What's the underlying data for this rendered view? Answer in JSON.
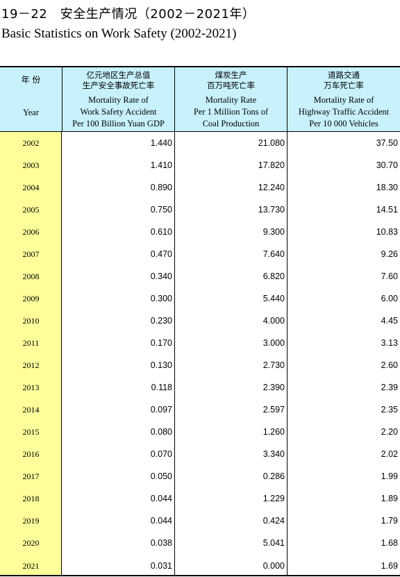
{
  "title_cn": "19－22　安全生产情况（2002－2021年）",
  "title_en": "Basic Statistics on Work Safety (2002-2021)",
  "header": {
    "year_cn": "年 份",
    "year_en": "Year",
    "col1_cn1": "亿元地区生产总值",
    "col1_cn2": "生产安全事故死亡率",
    "col1_en1": "Mortality Rate of",
    "col1_en2": "Work Safety Accident",
    "col1_en3": "Per 100 Billion Yuan GDP",
    "col2_cn1": "煤炭生产",
    "col2_cn2": "百万吨死亡率",
    "col2_en1": "Mortality Rate",
    "col2_en2": "Per 1 Million Tons of",
    "col2_en3": "Coal Production",
    "col3_cn1": "道路交通",
    "col3_cn2": "万车死亡率",
    "col3_en1": "Mortality Rate of",
    "col3_en2": "Highway Traffic Accident",
    "col3_en3": "Per 10 000 Vehicles"
  },
  "rows": [
    {
      "year": "2002",
      "gdp": "1.440",
      "coal": "21.080",
      "road": "37.50"
    },
    {
      "year": "2003",
      "gdp": "1.410",
      "coal": "17.820",
      "road": "30.70"
    },
    {
      "year": "2004",
      "gdp": "0.890",
      "coal": "12.240",
      "road": "18.30"
    },
    {
      "year": "2005",
      "gdp": "0.750",
      "coal": "13.730",
      "road": "14.51"
    },
    {
      "year": "2006",
      "gdp": "0.610",
      "coal": "9.300",
      "road": "10.83"
    },
    {
      "year": "2007",
      "gdp": "0.470",
      "coal": "7.640",
      "road": "9.26"
    },
    {
      "year": "2008",
      "gdp": "0.340",
      "coal": "6.820",
      "road": "7.60"
    },
    {
      "year": "2009",
      "gdp": "0.300",
      "coal": "5.440",
      "road": "6.00"
    },
    {
      "year": "2010",
      "gdp": "0.230",
      "coal": "4.000",
      "road": "4.45"
    },
    {
      "year": "2011",
      "gdp": "0.170",
      "coal": "3.000",
      "road": "3.13"
    },
    {
      "year": "2012",
      "gdp": "0.130",
      "coal": "2.730",
      "road": "2.60"
    },
    {
      "year": "2013",
      "gdp": "0.118",
      "coal": "2.390",
      "road": "2.39"
    },
    {
      "year": "2014",
      "gdp": "0.097",
      "coal": "2.597",
      "road": "2.35"
    },
    {
      "year": "2015",
      "gdp": "0.080",
      "coal": "1.260",
      "road": "2.20"
    },
    {
      "year": "2016",
      "gdp": "0.070",
      "coal": "3.340",
      "road": "2.02"
    },
    {
      "year": "2017",
      "gdp": "0.050",
      "coal": "0.286",
      "road": "1.99"
    },
    {
      "year": "2018",
      "gdp": "0.044",
      "coal": "1.229",
      "road": "1.89"
    },
    {
      "year": "2019",
      "gdp": "0.044",
      "coal": "0.424",
      "road": "1.79"
    },
    {
      "year": "2020",
      "gdp": "0.038",
      "coal": "5.041",
      "road": "1.68"
    },
    {
      "year": "2021",
      "gdp": "0.031",
      "coal": "0.000",
      "road": "1.69"
    }
  ],
  "colors": {
    "header_bg": "#c7f1fb",
    "year_col_bg": "#fefe9a"
  }
}
